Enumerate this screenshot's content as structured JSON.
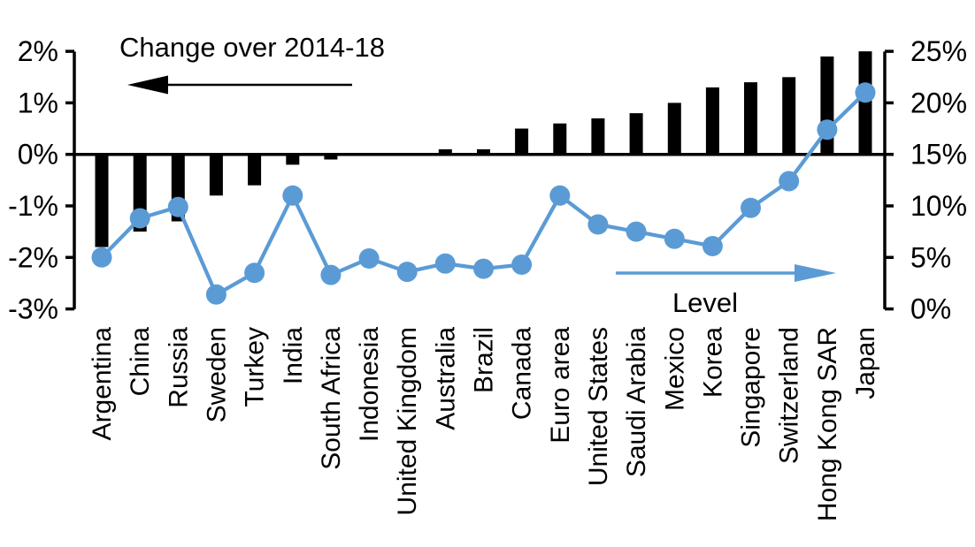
{
  "chart_data": {
    "type": "combo-bar-line-dual-axis",
    "title": "",
    "background": "#ffffff",
    "grid": false,
    "legend": "none (in-plot arrow annotations instead)",
    "categories": [
      "Argentina",
      "China",
      "Russia",
      "Sweden",
      "Turkey",
      "India",
      "South Africa",
      "Indonesia",
      "United Kingdom",
      "Australia",
      "Brazil",
      "Canada",
      "Euro area",
      "United States",
      "Saudi Arabia",
      "Mexico",
      "Korea",
      "Singapore",
      "Switzerland",
      "Hong Kong SAR",
      "Japan"
    ],
    "series": [
      {
        "name": "Change over 2014-18",
        "type": "bar",
        "axis": "left",
        "color": "#000000",
        "unit": "%",
        "values": [
          -1.8,
          -1.5,
          -1.3,
          -0.8,
          -0.6,
          -0.2,
          -0.1,
          0,
          0,
          0.1,
          0.1,
          0.5,
          0.6,
          0.7,
          0.8,
          1.0,
          1.3,
          1.4,
          1.5,
          1.9,
          2.0
        ]
      },
      {
        "name": "Level",
        "type": "line",
        "axis": "right",
        "color": "#5B9BD5",
        "marker": "circle",
        "unit": "%",
        "values": [
          5.0,
          8.8,
          9.9,
          1.4,
          3.5,
          11.0,
          3.3,
          4.9,
          3.6,
          4.4,
          3.9,
          4.3,
          11.0,
          8.2,
          7.5,
          6.8,
          6.1,
          9.8,
          12.4,
          17.4,
          21.0
        ]
      }
    ],
    "left_axis": {
      "min": -3,
      "max": 2,
      "step": 1,
      "tick_labels": [
        "2%",
        "1%",
        "0%",
        "-1%",
        "-2%",
        "-3%"
      ]
    },
    "right_axis": {
      "min": 0,
      "max": 25,
      "step": 5,
      "tick_labels": [
        "25%",
        "20%",
        "15%",
        "10%",
        "5%",
        "0%"
      ]
    },
    "annotations": [
      {
        "id": "change-annotation",
        "text": "Change over 2014-18",
        "arrow": "left",
        "arrow_color": "#000000",
        "text_color": "#000000"
      },
      {
        "id": "level-annotation",
        "text": "Level",
        "arrow": "right",
        "arrow_color": "#5B9BD5",
        "text_color": "#000000"
      }
    ],
    "colors": {
      "bar": "#000000",
      "line": "#5B9BD5",
      "axis": "#000000"
    }
  }
}
